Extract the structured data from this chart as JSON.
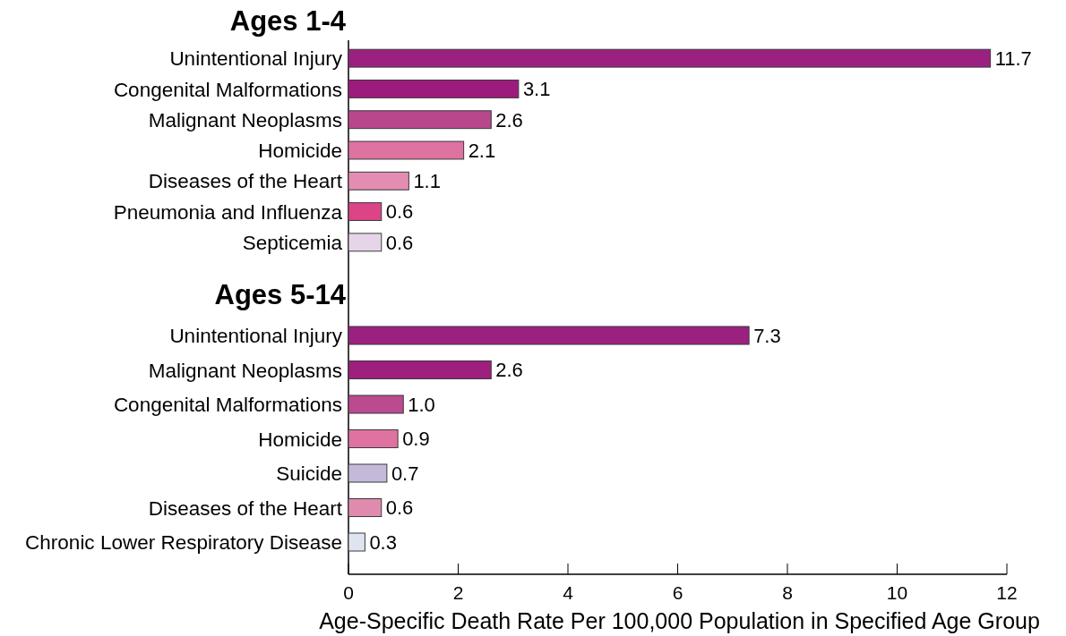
{
  "chart_data": [
    {
      "type": "bar",
      "orientation": "horizontal",
      "title": "Ages 1-4",
      "categories": [
        "Unintentional Injury",
        "Congenital Malformations",
        "Malignant Neoplasms",
        "Homicide",
        "Diseases of the Heart",
        "Pneumonia and Influenza",
        "Septicemia"
      ],
      "values": [
        11.7,
        3.1,
        2.6,
        2.1,
        1.1,
        0.6,
        0.6
      ],
      "value_labels": [
        "11.7",
        "3.1",
        "2.6",
        "2.1",
        "1.1",
        "0.6",
        "0.6"
      ],
      "colors": [
        "#9b2181",
        "#9c1b7d",
        "#b9478c",
        "#de72a0",
        "#e38db2",
        "#dc4488",
        "#e6d5e8"
      ],
      "xlim": [
        0,
        12
      ],
      "tick_labels": "y"
    },
    {
      "type": "bar",
      "orientation": "horizontal",
      "title": "Ages 5-14",
      "categories": [
        "Unintentional Injury",
        "Malignant Neoplasms",
        "Congenital Malformations",
        "Homicide",
        "Suicide",
        "Diseases of the Heart",
        "Chronic Lower Respiratory Disease"
      ],
      "values": [
        7.3,
        2.6,
        1.0,
        0.9,
        0.7,
        0.6,
        0.3
      ],
      "value_labels": [
        "7.3",
        "2.6",
        "1.0",
        "0.9",
        "0.7",
        "0.6",
        "0.3"
      ],
      "colors": [
        "#9b2181",
        "#9e1f7e",
        "#bb4a8e",
        "#de72a0",
        "#c5b9da",
        "#e08aae",
        "#dfe5ef"
      ],
      "xlim": [
        0,
        12
      ],
      "xticks": [
        0,
        2,
        4,
        6,
        8,
        10,
        12
      ],
      "xlabel": "Age-Specific Death Rate Per 100,000 Population in Specified Age Group"
    }
  ]
}
